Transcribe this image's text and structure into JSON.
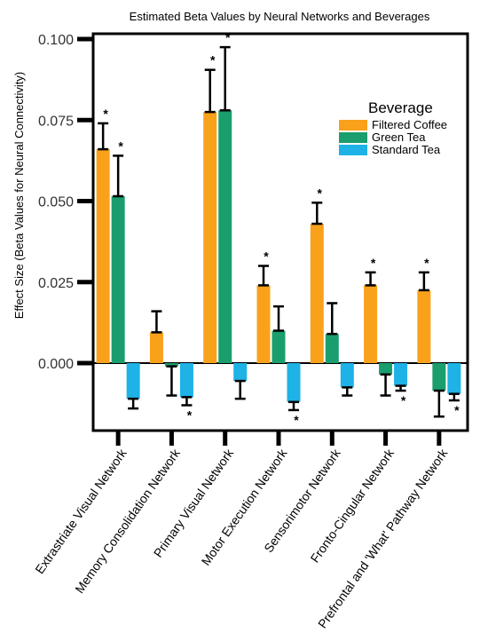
{
  "chart_data": {
    "type": "bar",
    "title": "Estimated Beta Values by Neural Networks and Beverages",
    "xlabel": "",
    "ylabel": "Effect Size (Beta Values for Neural Connectivity)",
    "ylim": [
      -0.02,
      0.1
    ],
    "yticks": [
      "0.100",
      "0.075",
      "0.050",
      "0.025",
      "0.000"
    ],
    "yticks_values": [
      0.1,
      0.075,
      0.05,
      0.025,
      0.0
    ],
    "grid": false,
    "legend": {
      "title": "Beverage",
      "position": "top-right"
    },
    "categories": [
      "Extrastriate Visual Network",
      "Memory Consolidation Network",
      "Primary Visual Network",
      "Motor Execution Network",
      "Sensorimotor Network",
      "Fronto-Cingular Network",
      "Prefrontal and 'What' Pathway Network"
    ],
    "series": [
      {
        "name": "Filtered Coffee",
        "color": "#F9A11B",
        "values": [
          0.066,
          0.0095,
          0.0775,
          0.024,
          0.043,
          0.024,
          0.0225
        ],
        "error": [
          0.008,
          0.0065,
          0.013,
          0.006,
          0.0065,
          0.004,
          0.0055
        ],
        "significant": [
          true,
          false,
          true,
          true,
          true,
          true,
          true
        ]
      },
      {
        "name": "Green Tea",
        "color": "#1A9E6E",
        "values": [
          0.0515,
          -0.001,
          0.078,
          0.01,
          0.009,
          -0.0035,
          -0.0085
        ],
        "error": [
          0.0125,
          0.009,
          0.0195,
          0.0075,
          0.0095,
          0.0065,
          0.008
        ],
        "significant": [
          true,
          false,
          true,
          false,
          false,
          false,
          false
        ]
      },
      {
        "name": "Standard Tea",
        "color": "#1EB2E6",
        "values": [
          -0.011,
          -0.0105,
          -0.0055,
          -0.012,
          -0.0075,
          -0.007,
          -0.0095
        ],
        "error": [
          0.003,
          0.0025,
          0.0055,
          0.0025,
          0.0025,
          0.0015,
          0.002
        ],
        "significant": [
          false,
          true,
          false,
          true,
          false,
          true,
          true
        ]
      }
    ],
    "significance_marker": "*"
  }
}
